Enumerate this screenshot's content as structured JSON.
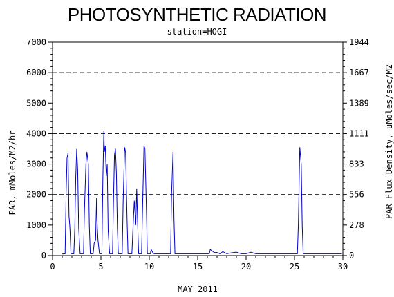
{
  "chart_data": {
    "type": "line",
    "title": "PHOTOSYNTHETIC RADIATION",
    "subtitle": "station=HOGI",
    "xlabel": "MAY 2011",
    "ylabel": "PAR, mMoles/M2/hr",
    "ylabel_right": "PAR Flux Density, uMoles/sec/M2",
    "xlim": [
      0,
      30
    ],
    "ylim": [
      0,
      7000
    ],
    "x_ticks": [
      "0",
      "5",
      "10",
      "15",
      "20",
      "25",
      "30"
    ],
    "y_ticks": [
      "0",
      "1000",
      "2000",
      "3000",
      "4000",
      "5000",
      "6000",
      "7000"
    ],
    "y_right_ticks": [
      "0",
      "278",
      "556",
      "833",
      "1111",
      "1389",
      "1667",
      "1944"
    ],
    "grid": "dashed horizontal lines at 2000, 4000, 6000",
    "line_color": "#0000cc",
    "series": [
      {
        "values": [
          [
            1.0,
            50
          ],
          [
            1.3,
            60
          ],
          [
            1.4,
            2000
          ],
          [
            1.5,
            3200
          ],
          [
            1.6,
            3350
          ],
          [
            1.7,
            1300
          ],
          [
            1.8,
            900
          ],
          [
            1.9,
            60
          ],
          [
            2.2,
            60
          ],
          [
            2.3,
            900
          ],
          [
            2.4,
            2600
          ],
          [
            2.5,
            3500
          ],
          [
            2.6,
            2800
          ],
          [
            2.7,
            900
          ],
          [
            2.85,
            60
          ],
          [
            3.2,
            60
          ],
          [
            3.3,
            1500
          ],
          [
            3.45,
            3000
          ],
          [
            3.55,
            3400
          ],
          [
            3.7,
            3000
          ],
          [
            3.8,
            1000
          ],
          [
            3.9,
            60
          ],
          [
            4.2,
            60
          ],
          [
            4.3,
            400
          ],
          [
            4.45,
            500
          ],
          [
            4.55,
            1900
          ],
          [
            4.6,
            1100
          ],
          [
            4.7,
            500
          ],
          [
            4.85,
            60
          ],
          [
            5.1,
            60
          ],
          [
            5.2,
            2500
          ],
          [
            5.3,
            4100
          ],
          [
            5.35,
            3400
          ],
          [
            5.45,
            3600
          ],
          [
            5.55,
            2600
          ],
          [
            5.65,
            3000
          ],
          [
            5.75,
            800
          ],
          [
            5.9,
            60
          ],
          [
            6.2,
            60
          ],
          [
            6.3,
            1800
          ],
          [
            6.4,
            3300
          ],
          [
            6.5,
            3500
          ],
          [
            6.6,
            2700
          ],
          [
            6.7,
            900
          ],
          [
            6.8,
            60
          ],
          [
            7.2,
            60
          ],
          [
            7.3,
            1800
          ],
          [
            7.45,
            3550
          ],
          [
            7.55,
            3400
          ],
          [
            7.7,
            1200
          ],
          [
            7.8,
            60
          ],
          [
            8.2,
            60
          ],
          [
            8.3,
            800
          ],
          [
            8.45,
            1800
          ],
          [
            8.6,
            1000
          ],
          [
            8.7,
            2200
          ],
          [
            8.8,
            1000
          ],
          [
            8.9,
            60
          ],
          [
            9.2,
            60
          ],
          [
            9.3,
            1500
          ],
          [
            9.45,
            3600
          ],
          [
            9.55,
            3500
          ],
          [
            9.7,
            1500
          ],
          [
            9.8,
            60
          ],
          [
            10.1,
            60
          ],
          [
            10.2,
            200
          ],
          [
            10.35,
            100
          ],
          [
            10.5,
            60
          ],
          [
            11.0,
            60
          ],
          [
            12.2,
            60
          ],
          [
            12.3,
            2000
          ],
          [
            12.45,
            3400
          ],
          [
            12.55,
            1200
          ],
          [
            12.65,
            60
          ],
          [
            14.0,
            60
          ],
          [
            16.2,
            60
          ],
          [
            16.3,
            200
          ],
          [
            16.5,
            150
          ],
          [
            16.7,
            100
          ],
          [
            17.0,
            100
          ],
          [
            17.3,
            60
          ],
          [
            17.6,
            130
          ],
          [
            18.0,
            60
          ],
          [
            18.5,
            90
          ],
          [
            19.0,
            110
          ],
          [
            19.5,
            60
          ],
          [
            20.0,
            60
          ],
          [
            20.5,
            110
          ],
          [
            21.0,
            60
          ],
          [
            24.0,
            60
          ],
          [
            25.3,
            60
          ],
          [
            25.4,
            1000
          ],
          [
            25.55,
            3550
          ],
          [
            25.7,
            3000
          ],
          [
            25.8,
            1000
          ],
          [
            25.9,
            60
          ],
          [
            26.5,
            60
          ],
          [
            29.9,
            60
          ]
        ]
      }
    ]
  }
}
